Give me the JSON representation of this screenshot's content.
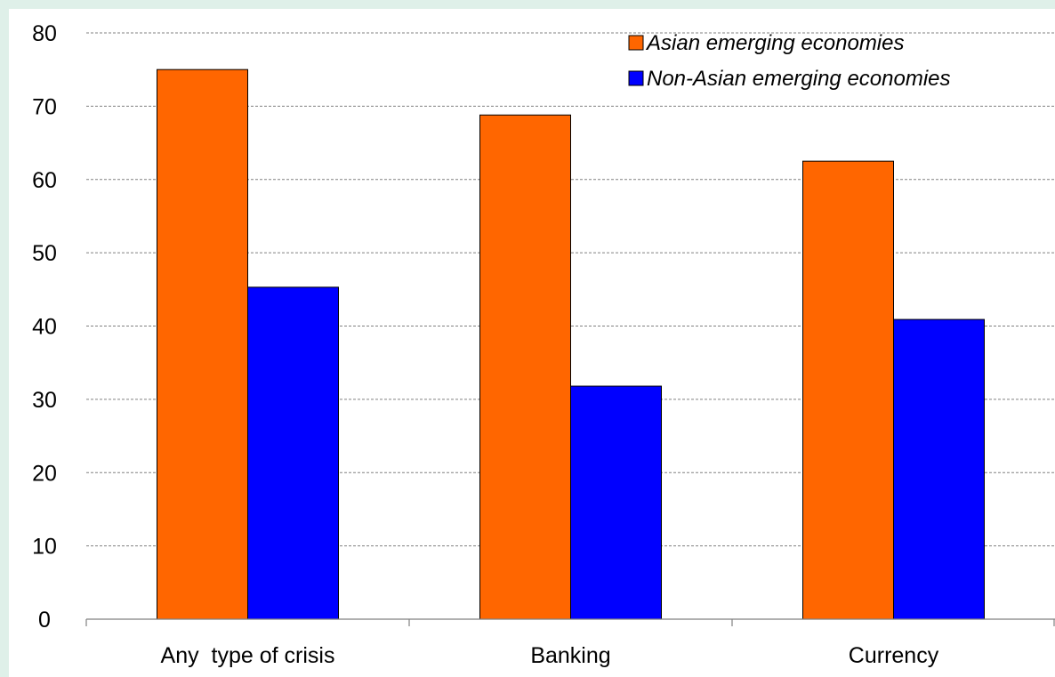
{
  "chart_data": {
    "type": "bar",
    "categories": [
      "Any  type of crisis",
      "Banking",
      "Currency"
    ],
    "series": [
      {
        "name": "Asian emerging economies",
        "color": "#ff6600",
        "values": [
          75,
          68.8,
          62.5
        ]
      },
      {
        "name": "Non-Asian emerging economies",
        "color": "#0000ff",
        "values": [
          45.3,
          31.8,
          40.9
        ]
      }
    ],
    "ylim": [
      0,
      80
    ],
    "yticks": [
      0,
      10,
      20,
      30,
      40,
      50,
      60,
      70,
      80
    ],
    "grid": true,
    "legend_position": "top-right",
    "background": "#ffffff",
    "frame_color": "#dff0e9"
  }
}
